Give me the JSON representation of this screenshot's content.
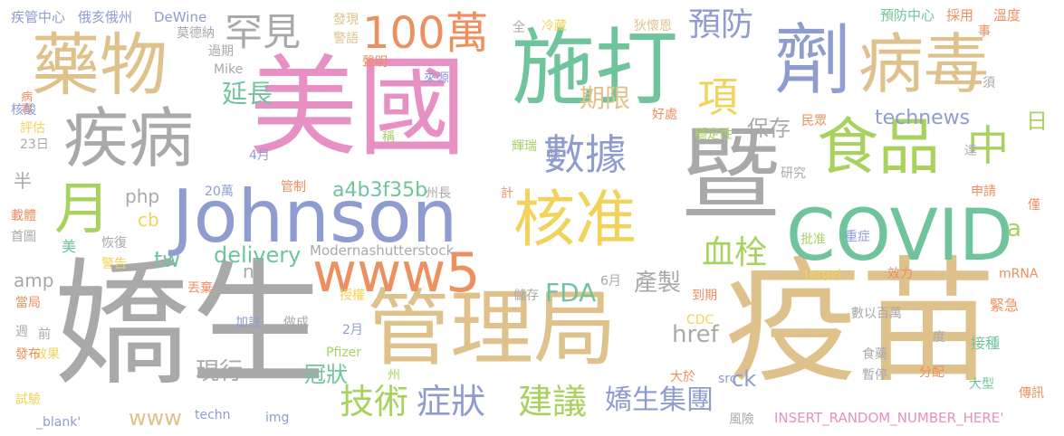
{
  "palette": {
    "gray": "#a9a9a9",
    "tan": "#dfc28b",
    "pink": "#e690c4",
    "green": "#6fc49b",
    "blue": "#8f9cd0",
    "lime": "#a8d25e",
    "yellow": "#f2d35a",
    "orange": "#ee8f5f",
    "white": "#ffffff"
  },
  "words": [
    {
      "text": "嬌生",
      "color": "gray",
      "vertical": false
    },
    {
      "text": "疫苗",
      "color": "tan",
      "vertical": false
    },
    {
      "text": "美國",
      "color": "pink",
      "vertical": false
    },
    {
      "text": "管理局",
      "color": "tan",
      "vertical": false
    },
    {
      "text": "施打",
      "color": "green",
      "vertical": false
    },
    {
      "text": "暨",
      "color": "gray",
      "vertical": false
    },
    {
      "text": "Johnson",
      "color": "blue",
      "vertical": false
    },
    {
      "text": "COVID",
      "color": "green",
      "vertical": false
    },
    {
      "text": "藥物",
      "color": "tan",
      "vertical": false
    },
    {
      "text": "劑",
      "color": "blue",
      "vertical": false
    },
    {
      "text": "病毒",
      "color": "tan",
      "vertical": false
    },
    {
      "text": "疾病",
      "color": "gray",
      "vertical": false
    },
    {
      "text": "食品",
      "color": "lime",
      "vertical": false
    },
    {
      "text": "核准",
      "color": "yellow",
      "vertical": false
    },
    {
      "text": "www5",
      "color": "orange",
      "vertical": false
    },
    {
      "text": "100萬",
      "color": "orange",
      "vertical": false
    },
    {
      "text": "數據",
      "color": "blue",
      "vertical": false
    },
    {
      "text": "月",
      "color": "lime",
      "vertical": false
    },
    {
      "text": "罕見",
      "color": "gray",
      "vertical": false
    },
    {
      "text": "項",
      "color": "yellow",
      "vertical": false
    },
    {
      "text": "中",
      "color": "lime",
      "vertical": false
    },
    {
      "text": "預防",
      "color": "blue",
      "vertical": false
    },
    {
      "text": "期限",
      "color": "tan",
      "vertical": false
    },
    {
      "text": "延長",
      "color": "green",
      "vertical": false
    },
    {
      "text": "保存",
      "color": "gray",
      "vertical": false
    },
    {
      "text": "technews",
      "color": "blue",
      "vertical": false
    },
    {
      "text": "日",
      "color": "lime",
      "vertical": false
    },
    {
      "text": "血栓",
      "color": "lime",
      "vertical": false
    },
    {
      "text": "a4b3f35b",
      "color": "green",
      "vertical": false
    },
    {
      "text": "a",
      "color": "lime",
      "vertical": false
    },
    {
      "text": "技術",
      "color": "lime",
      "vertical": false
    },
    {
      "text": "症狀",
      "color": "blue",
      "vertical": false
    },
    {
      "text": "建議",
      "color": "lime",
      "vertical": false
    },
    {
      "text": "嬌生集團",
      "color": "blue",
      "vertical": false
    },
    {
      "text": "FDA",
      "color": "green",
      "vertical": false
    },
    {
      "text": "產製",
      "color": "gray",
      "vertical": false
    },
    {
      "text": "href",
      "color": "gray",
      "vertical": false
    },
    {
      "text": "冠狀",
      "color": "green",
      "vertical": false
    },
    {
      "text": "現行",
      "color": "gray",
      "vertical": false
    },
    {
      "text": "delivery",
      "color": "green",
      "vertical": false
    },
    {
      "text": "tw",
      "color": "green",
      "vertical": false
    },
    {
      "text": "php",
      "color": "gray",
      "vertical": false
    },
    {
      "text": "cb",
      "color": "yellow",
      "vertical": false
    },
    {
      "text": "amp",
      "color": "gray",
      "vertical": false
    },
    {
      "text": "ck",
      "color": "blue",
      "vertical": false
    },
    {
      "text": "www",
      "color": "tan",
      "vertical": false
    },
    {
      "text": "n",
      "color": "gray",
      "vertical": false
    },
    {
      "text": "半",
      "color": "gray",
      "vertical": false
    },
    {
      "text": "美",
      "color": "green",
      "vertical": false
    },
    {
      "text": "疾管中心",
      "color": "blue",
      "vertical": false
    },
    {
      "text": "俄亥俄州",
      "color": "blue",
      "vertical": false
    },
    {
      "text": "DeWine",
      "color": "blue",
      "vertical": false
    },
    {
      "text": "莫德納",
      "color": "gray",
      "vertical": false
    },
    {
      "text": "過期",
      "color": "gray",
      "vertical": false
    },
    {
      "text": "Mike",
      "color": "gray",
      "vertical": false
    },
    {
      "text": "發現",
      "color": "tan",
      "vertical": false
    },
    {
      "text": "警語",
      "color": "tan",
      "vertical": false
    },
    {
      "text": "聲明",
      "color": "orange",
      "vertical": false
    },
    {
      "text": "全",
      "color": "gray",
      "vertical": true
    },
    {
      "text": "冷藏",
      "color": "yellow",
      "vertical": false
    },
    {
      "text": "狄懷恩",
      "color": "tan",
      "vertical": false
    },
    {
      "text": "預防中心",
      "color": "green",
      "vertical": false
    },
    {
      "text": "採用",
      "color": "orange",
      "vertical": false
    },
    {
      "text": "溫度",
      "color": "orange",
      "vertical": false
    },
    {
      "text": "事",
      "color": "orange",
      "vertical": false
    },
    {
      "text": "來源",
      "color": "blue",
      "vertical": false
    },
    {
      "text": "好處",
      "color": "orange",
      "vertical": false
    },
    {
      "text": "須",
      "color": "gray",
      "vertical": false
    },
    {
      "text": "病毒",
      "color": "orange",
      "vertical": true
    },
    {
      "text": "評估",
      "color": "yellow",
      "vertical": false
    },
    {
      "text": "23日",
      "color": "gray",
      "vertical": false
    },
    {
      "text": "核酸",
      "color": "blue",
      "vertical": false
    },
    {
      "text": "稱",
      "color": "lime",
      "vertical": false
    },
    {
      "text": "輝瑞",
      "color": "lime",
      "vertical": false
    },
    {
      "text": "腺",
      "color": "blue",
      "vertical": false
    },
    {
      "text": "穩定性",
      "color": "lime",
      "vertical": false
    },
    {
      "text": "民眾",
      "color": "orange",
      "vertical": false
    },
    {
      "text": "4月",
      "color": "blue",
      "vertical": false
    },
    {
      "text": "達",
      "color": "gray",
      "vertical": false
    },
    {
      "text": "研究",
      "color": "gray",
      "vertical": false
    },
    {
      "text": "20萬",
      "color": "blue",
      "vertical": false
    },
    {
      "text": "管制",
      "color": "orange",
      "vertical": false
    },
    {
      "text": "州長",
      "color": "gray",
      "vertical": false
    },
    {
      "text": "計",
      "color": "orange",
      "vertical": false
    },
    {
      "text": "申請",
      "color": "orange",
      "vertical": false
    },
    {
      "text": "僅",
      "color": "orange",
      "vertical": false
    },
    {
      "text": "載體",
      "color": "orange",
      "vertical": false
    },
    {
      "text": "首圖",
      "color": "gray",
      "vertical": false
    },
    {
      "text": "恢復",
      "color": "gray",
      "vertical": false
    },
    {
      "text": "警告",
      "color": "yellow",
      "vertical": false
    },
    {
      "text": "Modernashutterstock",
      "color": "gray",
      "vertical": false
    },
    {
      "text": "批准",
      "color": "lime",
      "vertical": false
    },
    {
      "text": "重症",
      "color": "blue",
      "vertical": false
    },
    {
      "text": "6月",
      "color": "gray",
      "vertical": false
    },
    {
      "text": "丟棄",
      "color": "orange",
      "vertical": false
    },
    {
      "text": "target",
      "color": "yellow",
      "vertical": false
    },
    {
      "text": "效力",
      "color": "orange",
      "vertical": false
    },
    {
      "text": "mRNA",
      "color": "orange",
      "vertical": false
    },
    {
      "text": "授權",
      "color": "yellow",
      "vertical": false
    },
    {
      "text": "儲存",
      "color": "gray",
      "vertical": false
    },
    {
      "text": "到期",
      "color": "orange",
      "vertical": false
    },
    {
      "text": "當局",
      "color": "orange",
      "vertical": false
    },
    {
      "text": "加註",
      "color": "blue",
      "vertical": false
    },
    {
      "text": "做成",
      "color": "gray",
      "vertical": false
    },
    {
      "text": "CDC",
      "color": "yellow",
      "vertical": false
    },
    {
      "text": "數以百萬",
      "color": "gray",
      "vertical": false
    },
    {
      "text": "緊急",
      "color": "orange",
      "vertical": false
    },
    {
      "text": "週",
      "color": "gray",
      "vertical": false
    },
    {
      "text": "前",
      "color": "gray",
      "vertical": false
    },
    {
      "text": "2月",
      "color": "blue",
      "vertical": false
    },
    {
      "text": "效果",
      "color": "yellow",
      "vertical": false
    },
    {
      "text": "Pfizer",
      "color": "lime",
      "vertical": false
    },
    {
      "text": "度",
      "color": "gray",
      "vertical": false
    },
    {
      "text": "接種",
      "color": "green",
      "vertical": false
    },
    {
      "text": "發布",
      "color": "orange",
      "vertical": false
    },
    {
      "text": "州",
      "color": "lime",
      "vertical": false
    },
    {
      "text": "大於",
      "color": "orange",
      "vertical": false
    },
    {
      "text": "src",
      "color": "blue",
      "vertical": false
    },
    {
      "text": "食藥",
      "color": "gray",
      "vertical": false
    },
    {
      "text": "暫停",
      "color": "gray",
      "vertical": false
    },
    {
      "text": "分配",
      "color": "orange",
      "vertical": false
    },
    {
      "text": "大型",
      "color": "green",
      "vertical": false
    },
    {
      "text": "傳訊",
      "color": "orange",
      "vertical": false
    },
    {
      "text": "試驗",
      "color": "yellow",
      "vertical": false
    },
    {
      "text": "_blank'",
      "color": "blue",
      "vertical": false
    },
    {
      "text": "techn",
      "color": "blue",
      "vertical": false
    },
    {
      "text": "img",
      "color": "blue",
      "vertical": false
    },
    {
      "text": "風險",
      "color": "gray",
      "vertical": false
    },
    {
      "text": "INSERT_RANDOM_NUMBER_HERE'",
      "color": "pink",
      "vertical": false
    }
  ]
}
